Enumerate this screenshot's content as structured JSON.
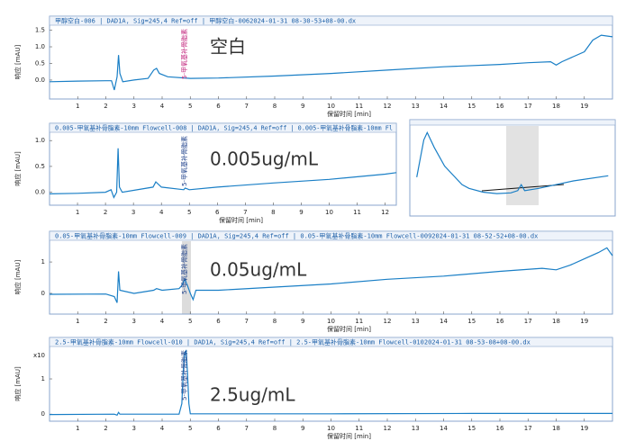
{
  "chart_data": [
    {
      "type": "line",
      "title": "甲醇空白-006 | DAD1A, Sig=245,4  Ref=off | 甲醇空白-0062024-01-31 08-30-53+08-00.dx",
      "xlabel": "保留时间 [min]",
      "ylabel": "响应 [mAU]",
      "annotation": "空白",
      "peak_label": "5-甲氧基补骨脂素",
      "color": "#1a7fc6",
      "x": [
        0,
        1,
        2,
        2.2,
        2.3,
        2.4,
        2.45,
        2.5,
        2.6,
        3,
        3.5,
        3.7,
        3.8,
        3.9,
        4.2,
        5,
        6,
        8,
        10,
        12,
        14,
        16,
        17,
        17.8,
        18,
        18.2,
        19,
        19.3,
        19.6,
        20
      ],
      "values": [
        -0.05,
        -0.03,
        -0.02,
        -0.02,
        -0.3,
        0.1,
        0.75,
        0.2,
        -0.05,
        0.0,
        0.05,
        0.3,
        0.35,
        0.2,
        0.1,
        0.05,
        0.06,
        0.12,
        0.2,
        0.3,
        0.4,
        0.47,
        0.52,
        0.55,
        0.45,
        0.55,
        0.85,
        1.2,
        1.35,
        1.3
      ],
      "xlim": [
        0,
        20
      ],
      "ylim": [
        -0.57,
        1.65
      ],
      "xticks": [
        1,
        2,
        3,
        4,
        5,
        6,
        7,
        8,
        9,
        10,
        11,
        12,
        13,
        14,
        15,
        16,
        17,
        18,
        19
      ],
      "yticks": [
        {
          "value": 0,
          "label": "0.0"
        },
        {
          "value": 0.5,
          "label": "0.5"
        },
        {
          "value": 1,
          "label": "1.0"
        },
        {
          "value": 1.5,
          "label": "1.5"
        }
      ]
    },
    {
      "type": "line",
      "title": "0.005-甲氧基补骨脂素-10mm Flowcell-008 | DAD1A, Sig=245,4  Ref=off | 0.005-甲氧基补骨脂素-10mm Fl",
      "xlabel": "保留时间 [min]",
      "ylabel": "响应 [mAU]",
      "annotation": "0.005ug/mL",
      "peak_label": "5-甲氧基补骨脂素",
      "color": "#1a7fc6",
      "x": [
        0,
        1,
        2,
        2.2,
        2.3,
        2.4,
        2.45,
        2.5,
        2.6,
        3.7,
        3.8,
        4,
        4.8,
        4.85,
        5,
        6,
        8,
        10,
        12,
        12.4
      ],
      "values": [
        -0.03,
        -0.02,
        0.0,
        0.05,
        -0.1,
        0.0,
        0.85,
        0.1,
        0.0,
        0.1,
        0.2,
        0.1,
        0.05,
        0.08,
        0.05,
        0.1,
        0.18,
        0.25,
        0.35,
        0.38
      ],
      "xlim": [
        0,
        12.4
      ],
      "ylim": [
        -0.25,
        1.16
      ],
      "xticks": [
        1,
        2,
        3,
        4,
        5,
        6,
        7,
        8,
        9,
        10,
        11,
        12
      ],
      "yticks": [
        {
          "value": 0,
          "label": "0.0"
        },
        {
          "value": 0.5,
          "label": "0.5"
        },
        {
          "value": 1,
          "label": "1.0"
        }
      ]
    },
    {
      "type": "line",
      "title": "0.05-甲氧基补骨脂素-10mm Flowcell-009 | DAD1A, Sig=245,4  Ref=off | 0.05-甲氧基补骨脂素-10mm Flowcell-0092024-01-31 08-52-52+08-00.dx",
      "xlabel": "保留时间 [min]",
      "ylabel": "响应 [mAU]",
      "annotation": "0.05ug/mL",
      "peak_label": "5-甲氧基补骨脂素",
      "color": "#1a7fc6",
      "x": [
        0,
        2,
        2.3,
        2.4,
        2.45,
        2.5,
        3,
        3.7,
        3.8,
        4,
        4.6,
        4.7,
        4.8,
        4.9,
        5,
        5.1,
        5.2,
        6,
        8,
        10,
        12,
        14,
        16,
        17.5,
        18,
        18.5,
        19,
        19.5,
        19.8,
        20
      ],
      "values": [
        -0.03,
        -0.02,
        -0.1,
        -0.3,
        0.7,
        0.1,
        0.0,
        0.1,
        0.15,
        0.1,
        0.15,
        0.25,
        0.45,
        0.25,
        0.0,
        -0.2,
        0.1,
        0.1,
        0.2,
        0.3,
        0.45,
        0.55,
        0.7,
        0.8,
        0.75,
        0.9,
        1.1,
        1.3,
        1.45,
        1.2
      ],
      "xlim": [
        0,
        20
      ],
      "ylim": [
        -0.66,
        1.69
      ],
      "xticks": [
        1,
        2,
        3,
        4,
        5,
        6,
        7,
        8,
        9,
        10,
        11,
        12,
        13,
        14,
        15,
        16,
        17,
        18,
        19
      ],
      "yticks": [
        0,
        1
      ]
    },
    {
      "type": "line",
      "title": "2.5-甲氧基补骨脂素-10mm Flowcell-010 | DAD1A, Sig=245,4  Ref=off | 2.5-甲氧基补骨脂素-10mm Flowcell-0102024-01-31 08-53-08+08-00.dx",
      "xlabel": "保留时间 [min]",
      "ylabel": "响应 [mAU]",
      "annotation": "2.5ug/mL",
      "peak_label": "5-甲氧基补骨脂素",
      "y_scale_label": "x10",
      "color": "#1a7fc6",
      "x": [
        0,
        2.3,
        2.4,
        2.45,
        2.5,
        4.6,
        4.7,
        4.75,
        4.8,
        4.85,
        4.9,
        4.95,
        5,
        10,
        15,
        20
      ],
      "values": [
        -0.01,
        0,
        -0.03,
        0.05,
        0,
        0,
        0.3,
        1.2,
        1.75,
        1.8,
        1.2,
        0.3,
        0.01,
        0.01,
        0.02,
        0.02
      ],
      "xlim": [
        0,
        20
      ],
      "ylim": [
        -0.2,
        1.92
      ],
      "xticks": [
        1,
        2,
        3,
        4,
        5,
        6,
        7,
        8,
        9,
        10,
        11,
        12,
        13,
        14,
        15,
        16,
        17,
        18,
        19
      ],
      "yticks": [
        0,
        1
      ]
    },
    {
      "type": "line",
      "color": "#1a7fc6",
      "x": [
        3.5,
        3.7,
        3.8,
        4,
        4.3,
        4.6,
        4.8,
        5,
        5.4,
        5.8,
        6.2,
        6.4,
        6.5,
        6.6,
        7,
        8,
        9
      ],
      "values": [
        0.3,
        0.8,
        0.9,
        0.7,
        0.45,
        0.3,
        0.2,
        0.15,
        0.1,
        0.08,
        0.09,
        0.12,
        0.2,
        0.12,
        0.15,
        0.25,
        0.32
      ],
      "xlim": [
        3.3,
        9.2
      ],
      "ylim": [
        -0.1,
        1.0
      ]
    }
  ]
}
